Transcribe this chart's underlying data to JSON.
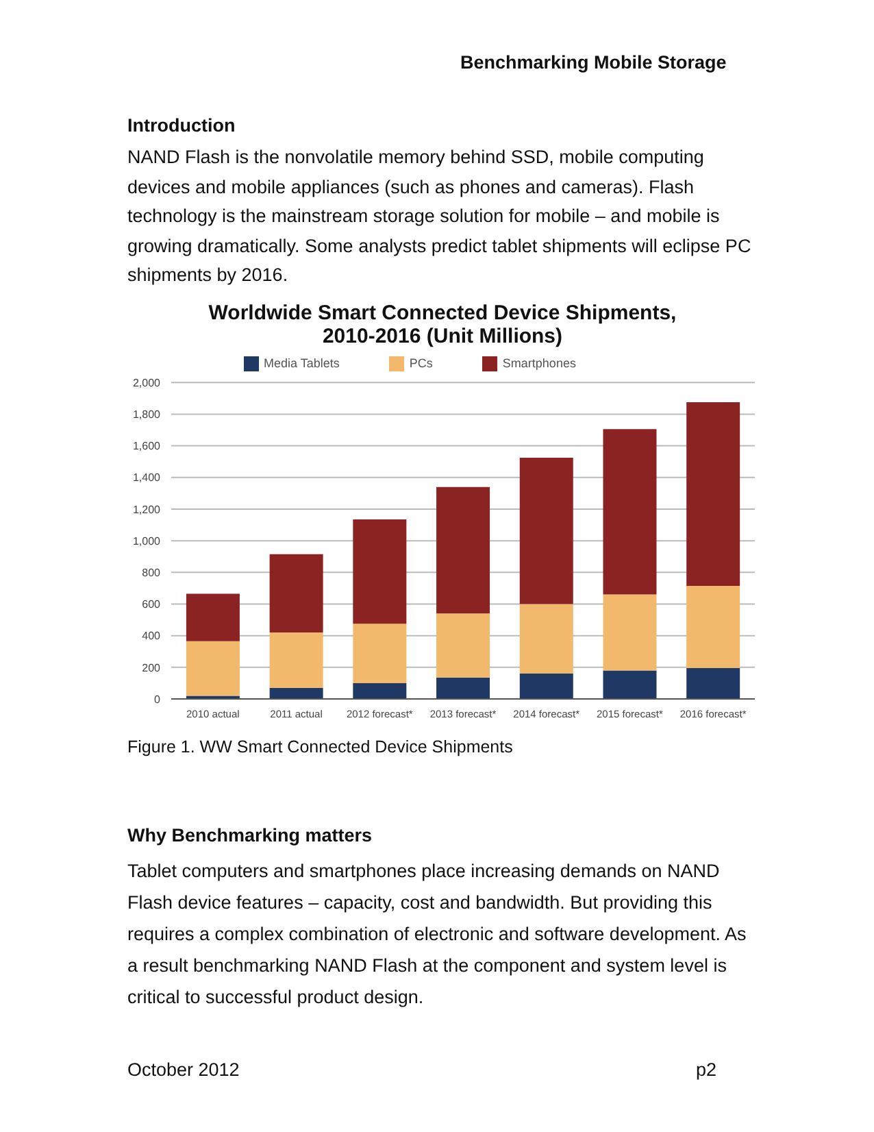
{
  "chart_data": {
    "type": "bar",
    "title": "Worldwide Smart Connected Device Shipments,\n2010-2016 (Unit Millions)",
    "categories": [
      "2010 actual",
      "2011 actual",
      "2012 forecast*",
      "2013 forecast*",
      "2014 forecast*",
      "2015 forecast*",
      "2016 forecast*"
    ],
    "stacked": true,
    "series": [
      {
        "name": "Media Tablets",
        "color": "#1f3864",
        "values": [
          20,
          70,
          100,
          135,
          160,
          180,
          195
        ]
      },
      {
        "name": "PCs",
        "color": "#f2b86b",
        "values": [
          345,
          350,
          375,
          405,
          440,
          480,
          520
        ]
      },
      {
        "name": "Smartphones",
        "color": "#8b2323",
        "values": [
          300,
          495,
          660,
          800,
          925,
          1045,
          1160
        ]
      }
    ],
    "ylim": [
      0,
      2000
    ],
    "yticks": [
      {
        "value": 0,
        "label": "0"
      },
      {
        "value": 200,
        "label": "200"
      },
      {
        "value": 400,
        "label": "400"
      },
      {
        "value": 600,
        "label": "600"
      },
      {
        "value": 800,
        "label": "800"
      },
      {
        "value": 1000,
        "label": "1,000"
      },
      {
        "value": 1200,
        "label": "1,200"
      },
      {
        "value": 1400,
        "label": "1,400"
      },
      {
        "value": 1600,
        "label": "1,600"
      },
      {
        "value": 1800,
        "label": "1,800"
      },
      {
        "value": 2000,
        "label": "2,000"
      }
    ],
    "grid": "y",
    "legend": "top",
    "annotations": [
      "Benchmarking Mobile Storage",
      "Introduction",
      "NAND Flash is the nonvolatile memory behind SSD, mobile computing devices and mobile appliances (such as phones and cameras). Flash technology is the mainstream storage solution for mobile – and mobile is growing dramatically. Some analysts predict tablet shipments will eclipse PC shipments by 2016.",
      "Figure 1. WW Smart Connected Device Shipments",
      "Why Benchmarking matters",
      "Tablet computers and smartphones place increasing demands on NAND Flash device features – capacity, cost and bandwidth. But providing this requires a complex combination of electronic and software development. As a result benchmarking NAND Flash at the component and system level is critical to successful product design.",
      "October 2012",
      "p2"
    ]
  }
}
